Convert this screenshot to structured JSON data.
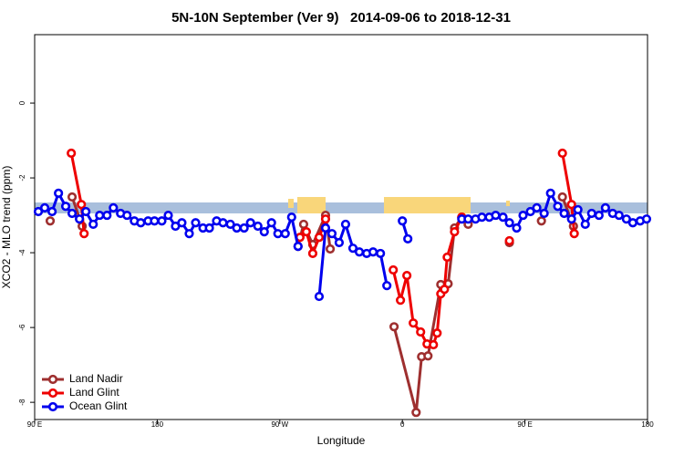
{
  "chart_data": {
    "type": "line",
    "title": "5N-10N September (Ver 9)   2014-09-06 to 2018-12-31",
    "x_label": "Longitude",
    "y_label": "XCO2 - MLO trend (ppm)",
    "xlim": [
      90,
      540
    ],
    "ylim": [
      -8.46,
      1.83
    ],
    "xticks": [
      {
        "value": 90,
        "label": "90 E"
      },
      180,
      {
        "value": 270,
        "label": "90 W"
      },
      {
        "value": 360,
        "label": "0"
      },
      {
        "value": 450,
        "label": "90 E"
      },
      {
        "value": 540,
        "label": "180"
      }
    ],
    "yticks": [
      0,
      -2,
      -4,
      -6,
      -8
    ],
    "legend": "bottomleft",
    "series": [
      {
        "name": "Land Nadir",
        "color": "#9e2f2f",
        "x": [
          101.4,
          null,
          117.5,
          124.9,
          null,
          283.4,
          287.5,
          294.2,
          303.6,
          307.0,
          null,
          353.9,
          370.1,
          374.1,
          378.8,
          388.2,
          393.6,
          398.3,
          403.6,
          408.3,
          null,
          438.6,
          null,
          462.1,
          null,
          477.5,
          485.6
        ],
        "values": [
          -3.15,
          null,
          -2.51,
          -3.29,
          null,
          -3.83,
          -3.24,
          -3.78,
          -3.0,
          -3.9,
          null,
          -5.98,
          -8.27,
          -6.78,
          -6.76,
          -4.85,
          -4.83,
          -3.34,
          -3.05,
          -3.24,
          null,
          -3.73,
          null,
          -3.15,
          null,
          -2.51,
          -3.29
        ]
      },
      {
        "name": "Land Glint",
        "color": "#ee0000",
        "x": [
          116.9,
          124.3,
          126.3,
          null,
          284.8,
          289.5,
          294.2,
          298.9,
          303.6,
          null,
          353.3,
          358.6,
          363.3,
          368.0,
          373.4,
          378.1,
          382.8,
          385.5,
          388.2,
          390.9,
          392.9,
          398.3,
          403.6,
          null,
          438.6,
          null,
          477.5,
          484.2,
          486.2
        ],
        "values": [
          -1.34,
          -2.71,
          -3.49,
          null,
          -3.59,
          -3.44,
          -4.02,
          -3.59,
          -3.1,
          null,
          -4.46,
          -5.27,
          -4.61,
          -5.88,
          -6.12,
          -6.44,
          -6.46,
          -6.15,
          -5.1,
          -4.98,
          -4.12,
          -3.44,
          -3.05,
          null,
          -3.68,
          null,
          -1.34,
          -2.71,
          -3.49
        ]
      },
      {
        "name": "Ocean Glint",
        "color": "#0000ee",
        "x": [
          92.7,
          97.4,
          102.8,
          107.5,
          112.8,
          117.5,
          122.9,
          127.6,
          133.0,
          137.7,
          143.1,
          147.8,
          153.1,
          157.8,
          163.2,
          167.9,
          173.3,
          178.0,
          183.4,
          188.1,
          193.4,
          198.1,
          203.5,
          208.2,
          213.6,
          218.3,
          223.6,
          228.3,
          233.7,
          238.4,
          243.8,
          248.5,
          253.9,
          258.6,
          263.9,
          268.6,
          274.0,
          278.7,
          283.4,
          null,
          298.9,
          303.6,
          308.3,
          313.6,
          318.3,
          323.7,
          328.4,
          333.8,
          338.5,
          343.9,
          348.6,
          null,
          360.0,
          364.0,
          null,
          403.6,
          408.3,
          413.7,
          418.4,
          423.8,
          428.5,
          433.9,
          438.6,
          443.9,
          448.6,
          454.0,
          458.7,
          464.1,
          468.8,
          474.1,
          478.8,
          484.2,
          488.9,
          494.3,
          499.0,
          504.4,
          509.1,
          514.4,
          519.1,
          524.5,
          529.2,
          534.6,
          539.3
        ],
        "values": [
          -2.9,
          -2.8,
          -2.9,
          -2.41,
          -2.76,
          -2.95,
          -3.1,
          -2.9,
          -3.24,
          -3.0,
          -3.0,
          -2.8,
          -2.95,
          -3.0,
          -3.15,
          -3.2,
          -3.15,
          -3.15,
          -3.15,
          -3.0,
          -3.29,
          -3.2,
          -3.49,
          -3.2,
          -3.34,
          -3.34,
          -3.15,
          -3.2,
          -3.24,
          -3.34,
          -3.34,
          -3.2,
          -3.29,
          -3.44,
          -3.2,
          -3.49,
          -3.49,
          -3.05,
          -3.83,
          null,
          -5.17,
          -3.34,
          -3.49,
          -3.73,
          -3.24,
          -3.88,
          -3.98,
          -4.02,
          -3.98,
          -4.02,
          -4.88,
          null,
          -3.15,
          -3.63,
          null,
          -3.1,
          -3.1,
          -3.1,
          -3.05,
          -3.05,
          -3.0,
          -3.05,
          -3.2,
          -3.34,
          -3.0,
          -2.9,
          -2.8,
          -2.95,
          -2.41,
          -2.76,
          -2.95,
          -3.1,
          -2.85,
          -3.24,
          -2.95,
          -3.0,
          -2.8,
          -2.95,
          -3.0,
          -3.1,
          -3.2,
          -3.15,
          -3.1
        ]
      }
    ]
  }
}
